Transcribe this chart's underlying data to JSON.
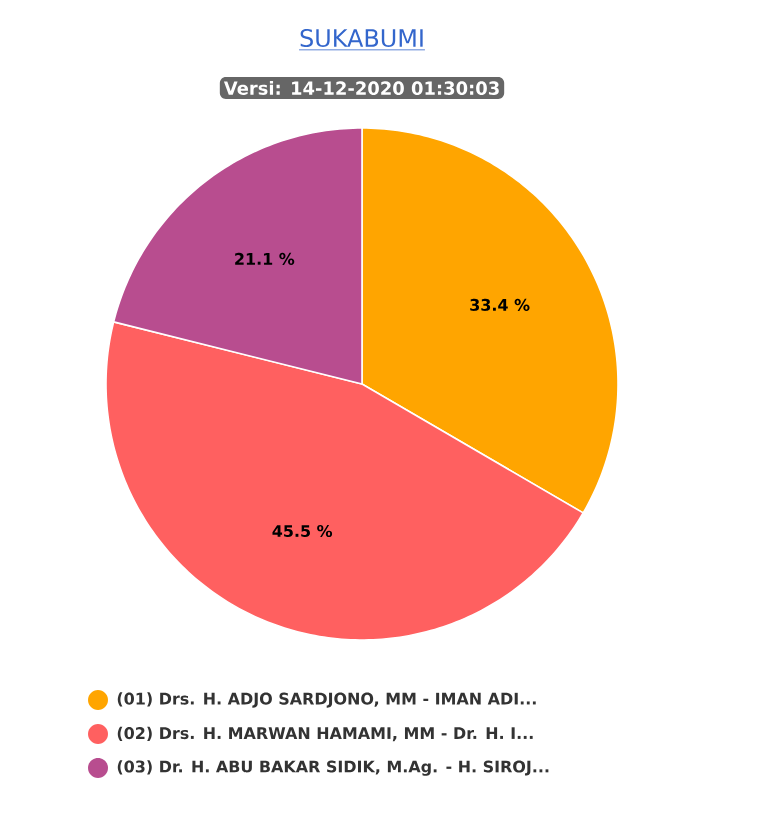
{
  "chart_data": {
    "type": "pie",
    "title": "SUKABUMI",
    "subtitle": "Versi: 14-12-2020 01:30:03",
    "categories": [
      "(01) Drs. H. ADJO SARDJONO, MM - IMAN ADI...",
      "(02) Drs. H. MARWAN HAMAMI, MM - Dr. H. I...",
      "(03) Dr. H. ABU BAKAR SIDIK, M.Ag. - H. SIROJ..."
    ],
    "values": [
      33.4,
      45.5,
      21.1
    ],
    "colors": [
      "#ffa500",
      "#ff6060",
      "#b84d8f"
    ],
    "value_labels": [
      "33.4 %",
      "45.5 %",
      "21.1 %"
    ],
    "legend": "bottom"
  }
}
